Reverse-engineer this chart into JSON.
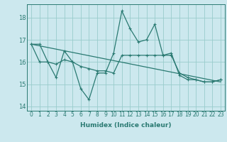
{
  "title": "",
  "xlabel": "Humidex (Indice chaleur)",
  "bg_color": "#cce8ee",
  "grid_color": "#99cccc",
  "line_color": "#2a7a72",
  "xlim": [
    -0.5,
    23.5
  ],
  "ylim": [
    13.8,
    18.6
  ],
  "yticks": [
    14,
    15,
    16,
    17,
    18
  ],
  "xticks": [
    0,
    1,
    2,
    3,
    4,
    5,
    6,
    7,
    8,
    9,
    10,
    11,
    12,
    13,
    14,
    15,
    16,
    17,
    18,
    19,
    20,
    21,
    22,
    23
  ],
  "line1_x": [
    0,
    1,
    2,
    3,
    4,
    5,
    6,
    7,
    8,
    9,
    10,
    11,
    12,
    13,
    14,
    15,
    16,
    17,
    18,
    19,
    20,
    21,
    22,
    23
  ],
  "line1_y": [
    16.8,
    16.8,
    16.0,
    15.3,
    16.5,
    16.0,
    14.8,
    14.3,
    15.5,
    15.5,
    16.4,
    18.3,
    17.5,
    16.9,
    17.0,
    17.7,
    16.3,
    16.4,
    15.4,
    15.2,
    15.2,
    15.1,
    15.1,
    15.2
  ],
  "line2_x": [
    0,
    1,
    2,
    3,
    4,
    5,
    6,
    7,
    8,
    9,
    10,
    11,
    12,
    13,
    14,
    15,
    16,
    17,
    18,
    19,
    20,
    21,
    22,
    23
  ],
  "line2_y": [
    16.8,
    16.0,
    16.0,
    15.9,
    16.1,
    16.0,
    15.8,
    15.7,
    15.6,
    15.6,
    15.5,
    16.3,
    16.3,
    16.3,
    16.3,
    16.3,
    16.3,
    16.3,
    15.5,
    15.3,
    15.2,
    15.1,
    15.1,
    15.2
  ],
  "line3_x": [
    0,
    23
  ],
  "line3_y": [
    16.8,
    15.1
  ],
  "tick_fontsize": 5.5,
  "xlabel_fontsize": 6.5
}
